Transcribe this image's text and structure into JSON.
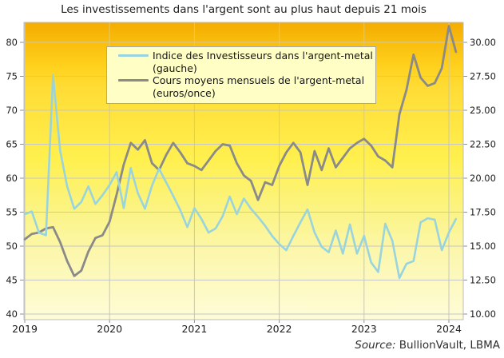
{
  "window": {
    "title": "Les investissements dans l'argent sont au plus haut depuis 21 mois"
  },
  "source_note": {
    "prefix": "Source:",
    "text": " BullionVault, LBMA"
  },
  "legend": {
    "items": [
      {
        "line1": "Indice des Investisseurs dans l'argent-metal",
        "line2": "(gauche)",
        "color": "#99d4de"
      },
      {
        "line1": "Cours moyens mensuels de l'argent-metal",
        "line2": "(euros/once)",
        "color": "#8a8a8a"
      }
    ]
  },
  "chart_data": {
    "type": "line",
    "title": "Les investissements dans l'argent sont au plus haut depuis 21 mois",
    "frequency": "monthly",
    "x_start": "2019-01",
    "x_tick_labels": [
      "2019",
      "2020",
      "2021",
      "2022",
      "2023",
      "2024"
    ],
    "left_axis": {
      "min": 40,
      "max": 80,
      "tick_step": 5,
      "tick_labels": [
        "40",
        "45",
        "50",
        "55",
        "60",
        "65",
        "70",
        "75",
        "80"
      ]
    },
    "right_axis": {
      "min": 10,
      "max": 30,
      "tick_step": 2.5,
      "tick_labels": [
        "10.00",
        "12.50",
        "15.00",
        "17.50",
        "20.00",
        "22.50",
        "25.00",
        "27.50",
        "30.00"
      ]
    },
    "grid": true,
    "legend_position": "top-left-inside",
    "gridline_color": "#c6c6c6",
    "border_color": "#bdbdbd",
    "tick_color": "#8f8f8f",
    "plot_background_gradient": [
      "#F4AC00",
      "#FFD21E",
      "#FFDC35",
      "#FFF04F",
      "#FBF489",
      "#FCF7AE",
      "#FEFCD8"
    ],
    "gradient_stops_pct": [
      0,
      15,
      22,
      46,
      65,
      78,
      100
    ],
    "series": [
      {
        "name": "Indice des Investisseurs dans l'argent-metal (gauche)",
        "axis": "left",
        "color": "#99d4de",
        "stroke_width": 2.6,
        "values": [
          54.7,
          55.1,
          52.0,
          51.6,
          75.2,
          64.1,
          58.8,
          55.5,
          56.5,
          58.8,
          56.2,
          57.5,
          59.0,
          60.9,
          55.6,
          61.5,
          57.8,
          55.5,
          58.9,
          61.4,
          59.4,
          57.4,
          55.3,
          52.8,
          55.6,
          54.0,
          52.0,
          52.6,
          54.4,
          57.3,
          54.7,
          57.0,
          55.5,
          54.3,
          53.0,
          51.5,
          50.3,
          49.4,
          51.5,
          53.5,
          55.4,
          52.0,
          49.9,
          49.1,
          52.3,
          48.9,
          53.2,
          48.9,
          51.5,
          47.6,
          46.2,
          53.3,
          50.8,
          45.3,
          47.4,
          47.8,
          53.5,
          54.1,
          53.9,
          49.4,
          52.0,
          54.0
        ]
      },
      {
        "name": "Cours moyens mensuels de l'argent-metal (euros/once)",
        "axis": "right",
        "color": "#8a8a8a",
        "stroke_width": 2.8,
        "values": [
          15.5,
          15.9,
          16.0,
          16.3,
          16.4,
          15.3,
          13.9,
          12.8,
          13.2,
          14.6,
          15.6,
          15.8,
          16.8,
          18.8,
          21.0,
          22.6,
          22.1,
          22.8,
          21.1,
          20.6,
          21.7,
          22.6,
          21.9,
          21.1,
          20.9,
          20.6,
          21.3,
          22.0,
          22.5,
          22.4,
          21.1,
          20.2,
          19.8,
          18.4,
          19.7,
          19.5,
          20.9,
          21.9,
          22.6,
          21.9,
          19.5,
          22.0,
          20.6,
          22.2,
          20.8,
          21.5,
          22.2,
          22.6,
          22.9,
          22.4,
          21.6,
          21.3,
          20.8,
          24.7,
          26.5,
          29.1,
          27.4,
          26.8,
          27.0,
          28.1,
          31.2,
          29.3
        ]
      }
    ]
  }
}
